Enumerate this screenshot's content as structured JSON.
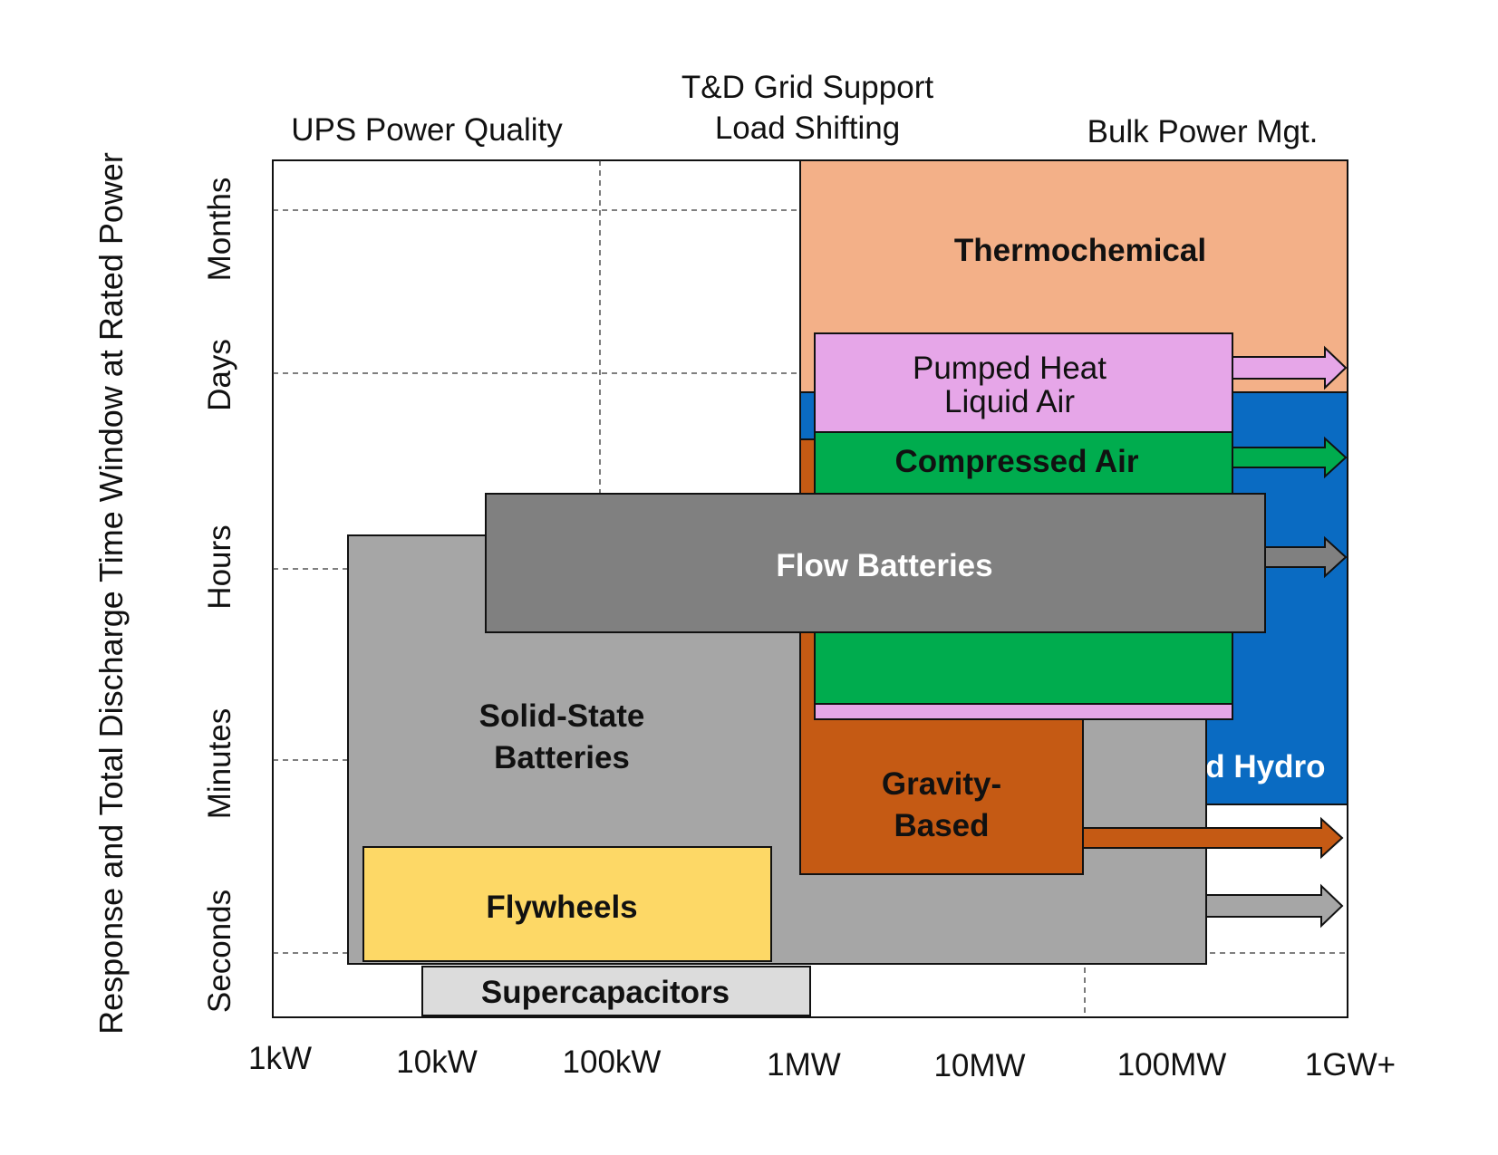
{
  "chart_data": {
    "type": "bar",
    "title": "",
    "ylabel": "Response and Total Discharge Time Window at Rated Power",
    "xlabel": "",
    "x_ticks": [
      "1kW",
      "10kW",
      "100kW",
      "1MW",
      "10MW",
      "100MW",
      "1GW+"
    ],
    "y_ticks": [
      "Seconds",
      "Minutes",
      "Hours",
      "Days",
      "Months"
    ],
    "application_regions": [
      "UPS Power Quality",
      "T&D Grid Support Load Shifting",
      "Bulk Power Mgt."
    ],
    "technologies": [
      {
        "name": "Thermochemical",
        "color": "#f3b088",
        "label_color": "#111111",
        "x_range": [
          "1MW",
          "1GW+"
        ],
        "y_range": [
          "Days",
          "Months"
        ],
        "extends_beyond": false
      },
      {
        "name": "Pumped Hydro",
        "color": "#0a6bc2",
        "label_color": "#ffffff",
        "x_range": [
          "1MW",
          "1GW+"
        ],
        "y_range": [
          "Minutes",
          "Days"
        ],
        "extends_beyond": false
      },
      {
        "name": "Gravity-Based",
        "color": "#c55a14",
        "label_color": "#111111",
        "x_range": [
          "1MW",
          "100MW"
        ],
        "y_range": [
          "Seconds",
          "Days"
        ],
        "extends_beyond": true
      },
      {
        "name": "Pumped Heat Liquid Air",
        "color": "#e6a6e8",
        "label_color": "#111111",
        "x_range": [
          "1MW",
          "100MW"
        ],
        "y_range": [
          "Minutes",
          "Days"
        ],
        "extends_beyond": true
      },
      {
        "name": "Compressed Air",
        "color": "#00ac4e",
        "label_color": "#111111",
        "x_range": [
          "1MW",
          "100MW"
        ],
        "y_range": [
          "Minutes",
          "Days"
        ],
        "extends_beyond": true
      },
      {
        "name": "Solid-State Batteries",
        "color": "#a6a6a6",
        "label_color": "#111111",
        "x_range": [
          "1kW",
          "100MW"
        ],
        "y_range": [
          "Seconds",
          "Hours"
        ],
        "extends_beyond": true
      },
      {
        "name": "Flow Batteries",
        "color": "#808080",
        "label_color": "#ffffff",
        "x_range": [
          "10kW",
          "100MW"
        ],
        "y_range": [
          "Hours",
          "Days"
        ],
        "extends_beyond": true
      },
      {
        "name": "Flywheels",
        "color": "#fdd866",
        "label_color": "#111111",
        "x_range": [
          "1kW",
          "1MW"
        ],
        "y_range": [
          "Seconds",
          "Minutes"
        ],
        "extends_beyond": false
      },
      {
        "name": "Supercapacitors",
        "color": "#dcdcdc",
        "label_color": "#111111",
        "x_range": [
          "1kW",
          "1MW"
        ],
        "y_range": [
          "Seconds",
          "Seconds"
        ],
        "extends_beyond": false
      }
    ],
    "grid": "dashed",
    "legend": "none"
  }
}
